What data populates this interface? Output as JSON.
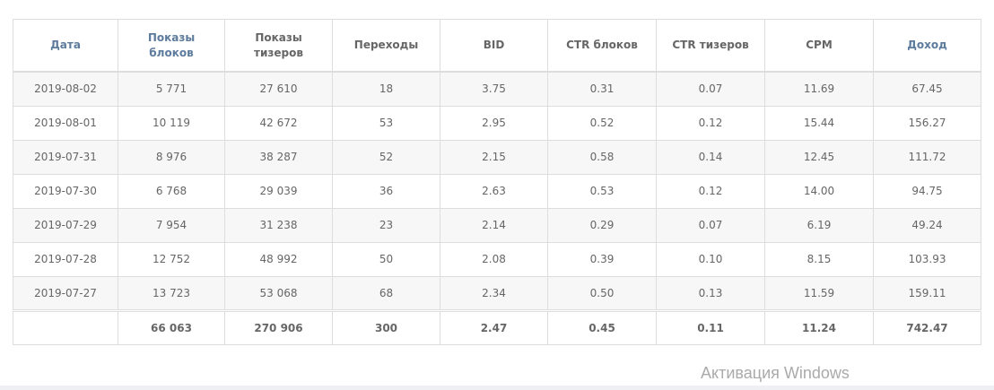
{
  "columns": [
    "Дата",
    "Показы\nблоков",
    "Показы\nтизеров",
    "Переходы",
    "BID",
    "CTR блоков",
    "CTR тизеров",
    "CPM",
    "Доход"
  ],
  "rows": [
    [
      "2019-08-02",
      "5 771",
      "27 610",
      "18",
      "3.75",
      "0.31",
      "0.07",
      "11.69",
      "67.45"
    ],
    [
      "2019-08-01",
      "10 119",
      "42 672",
      "53",
      "2.95",
      "0.52",
      "0.12",
      "15.44",
      "156.27"
    ],
    [
      "2019-07-31",
      "8 976",
      "38 287",
      "52",
      "2.15",
      "0.58",
      "0.14",
      "12.45",
      "111.72"
    ],
    [
      "2019-07-30",
      "6 768",
      "29 039",
      "36",
      "2.63",
      "0.53",
      "0.12",
      "14.00",
      "94.75"
    ],
    [
      "2019-07-29",
      "7 954",
      "31 238",
      "23",
      "2.14",
      "0.29",
      "0.07",
      "6.19",
      "49.24"
    ],
    [
      "2019-07-28",
      "12 752",
      "48 992",
      "50",
      "2.08",
      "0.39",
      "0.10",
      "8.15",
      "103.93"
    ],
    [
      "2019-07-27",
      "13 723",
      "53 068",
      "68",
      "2.34",
      "0.50",
      "0.13",
      "11.59",
      "159.11"
    ]
  ],
  "totals": [
    "",
    "66 063",
    "270 906",
    "300",
    "2.47",
    "0.45",
    "0.11",
    "11.24",
    "742.47"
  ],
  "watermark": "Активация Windows"
}
